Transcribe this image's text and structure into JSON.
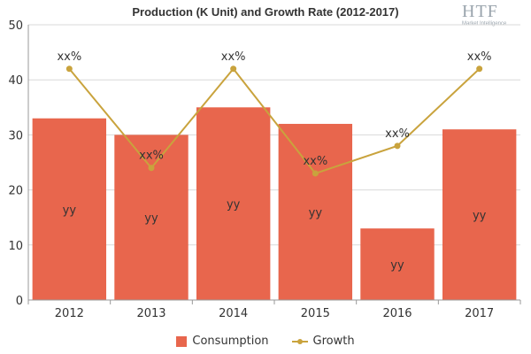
{
  "chart_data": {
    "type": "bar",
    "title": "Production (K Unit) and Growth Rate (2012-2017)",
    "categories": [
      "2012",
      "2013",
      "2014",
      "2015",
      "2016",
      "2017"
    ],
    "series": [
      {
        "name": "Consumption",
        "type": "bar",
        "values": [
          33,
          30,
          35,
          32,
          13,
          31
        ],
        "color": "#e8664d",
        "labels": [
          "yy",
          "yy",
          "yy",
          "yy",
          "yy",
          "yy"
        ]
      },
      {
        "name": "Growth",
        "type": "line",
        "values": [
          42,
          24,
          42,
          23,
          28,
          42
        ],
        "color": "#c9a33d",
        "labels": [
          "xx%",
          "xx%",
          "xx%",
          "xx%",
          "xx%",
          "xx%"
        ]
      }
    ],
    "ylim": [
      0,
      50
    ],
    "yticks": [
      0,
      10,
      20,
      30,
      40,
      50
    ],
    "grid": true,
    "legend_position": "bottom"
  },
  "logo": {
    "text": "HTF",
    "subtext": "Market Intelligence"
  }
}
